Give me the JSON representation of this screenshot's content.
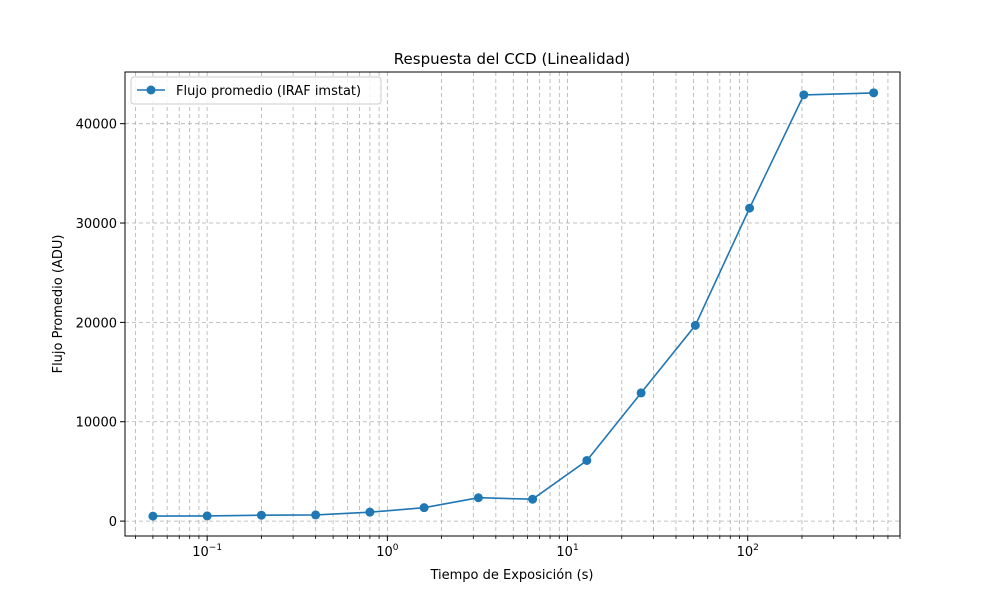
{
  "chart_data": {
    "type": "line",
    "title": "Respuesta del CCD (Linealidad)",
    "xlabel": "Tiempo de Exposición (s)",
    "ylabel": "Flujo Promedio (ADU)",
    "xscale": "log",
    "xlim": [
      0.035,
      700
    ],
    "ylim": [
      -1500,
      45200
    ],
    "x_ticks": [
      {
        "value": 0.1,
        "base": "10",
        "exp": "−1"
      },
      {
        "value": 1,
        "base": "10",
        "exp": "0"
      },
      {
        "value": 10,
        "base": "10",
        "exp": "1"
      },
      {
        "value": 100,
        "base": "10",
        "exp": "2"
      }
    ],
    "y_ticks": [
      {
        "value": 0,
        "label": "0"
      },
      {
        "value": 10000,
        "label": "10000"
      },
      {
        "value": 20000,
        "label": "20000"
      },
      {
        "value": 30000,
        "label": "30000"
      },
      {
        "value": 40000,
        "label": "40000"
      }
    ],
    "grid": "both (major and minor), dashed",
    "legend_position": "top-left",
    "series": [
      {
        "name": "Flujo promedio (IRAF imstat)",
        "color": "#1f77b4",
        "marker": "circle",
        "x": [
          0.05,
          0.1,
          0.2,
          0.4,
          0.8,
          1.6,
          3.2,
          6.4,
          12.8,
          25.6,
          51.2,
          102.4,
          204.8,
          500
        ],
        "y": [
          500,
          520,
          590,
          620,
          900,
          1350,
          2350,
          2200,
          6100,
          12900,
          19700,
          31500,
          42900,
          43100
        ]
      }
    ]
  }
}
